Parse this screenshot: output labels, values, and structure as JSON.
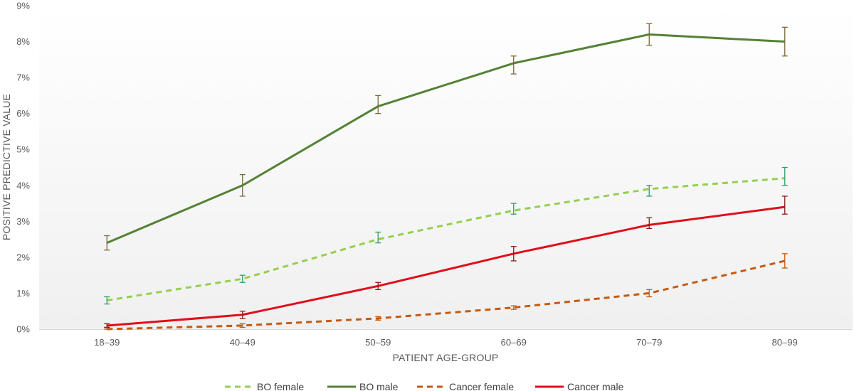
{
  "chart_data": {
    "type": "line",
    "title": "",
    "xlabel": "PATIENT AGE-GROUP",
    "ylabel": "POSITIVE PREDICTIVE VALUE",
    "categories": [
      "18–39",
      "40–49",
      "50–59",
      "60–69",
      "70–79",
      "80–99"
    ],
    "ylim": [
      0,
      9
    ],
    "yticks": [
      "0%",
      "1%",
      "2%",
      "3%",
      "4%",
      "5%",
      "6%",
      "7%",
      "8%",
      "9%"
    ],
    "grid": false,
    "legend_position": "bottom",
    "series": [
      {
        "name": "BO female",
        "style": "dashed",
        "color": "#92d050",
        "error_color": "#2e9e6a",
        "values": [
          0.8,
          1.4,
          2.5,
          3.3,
          3.9,
          4.2
        ],
        "error_low": [
          0.7,
          1.3,
          2.4,
          3.2,
          3.7,
          4.0
        ],
        "error_high": [
          0.9,
          1.5,
          2.7,
          3.5,
          4.0,
          4.5
        ]
      },
      {
        "name": "BO male",
        "style": "solid",
        "color": "#548235",
        "error_color": "#7a6a3a",
        "values": [
          2.4,
          4.0,
          6.2,
          7.4,
          8.2,
          8.0
        ],
        "error_low": [
          2.2,
          3.7,
          6.0,
          7.1,
          7.9,
          7.6
        ],
        "error_high": [
          2.6,
          4.3,
          6.5,
          7.6,
          8.5,
          8.4
        ]
      },
      {
        "name": "Cancer female",
        "style": "dashed",
        "color": "#c55a11",
        "error_color": "#c55a11",
        "values": [
          0.0,
          0.1,
          0.3,
          0.6,
          1.0,
          1.9
        ],
        "error_low": [
          0.0,
          0.05,
          0.25,
          0.55,
          0.9,
          1.7
        ],
        "error_high": [
          0.05,
          0.15,
          0.35,
          0.65,
          1.1,
          2.1
        ]
      },
      {
        "name": "Cancer male",
        "style": "solid",
        "color": "#e00e1c",
        "error_color": "#8b1a1a",
        "values": [
          0.1,
          0.4,
          1.2,
          2.1,
          2.9,
          3.4
        ],
        "error_low": [
          0.05,
          0.3,
          1.1,
          1.9,
          2.8,
          3.2
        ],
        "error_high": [
          0.15,
          0.5,
          1.3,
          2.3,
          3.1,
          3.7
        ]
      }
    ]
  }
}
